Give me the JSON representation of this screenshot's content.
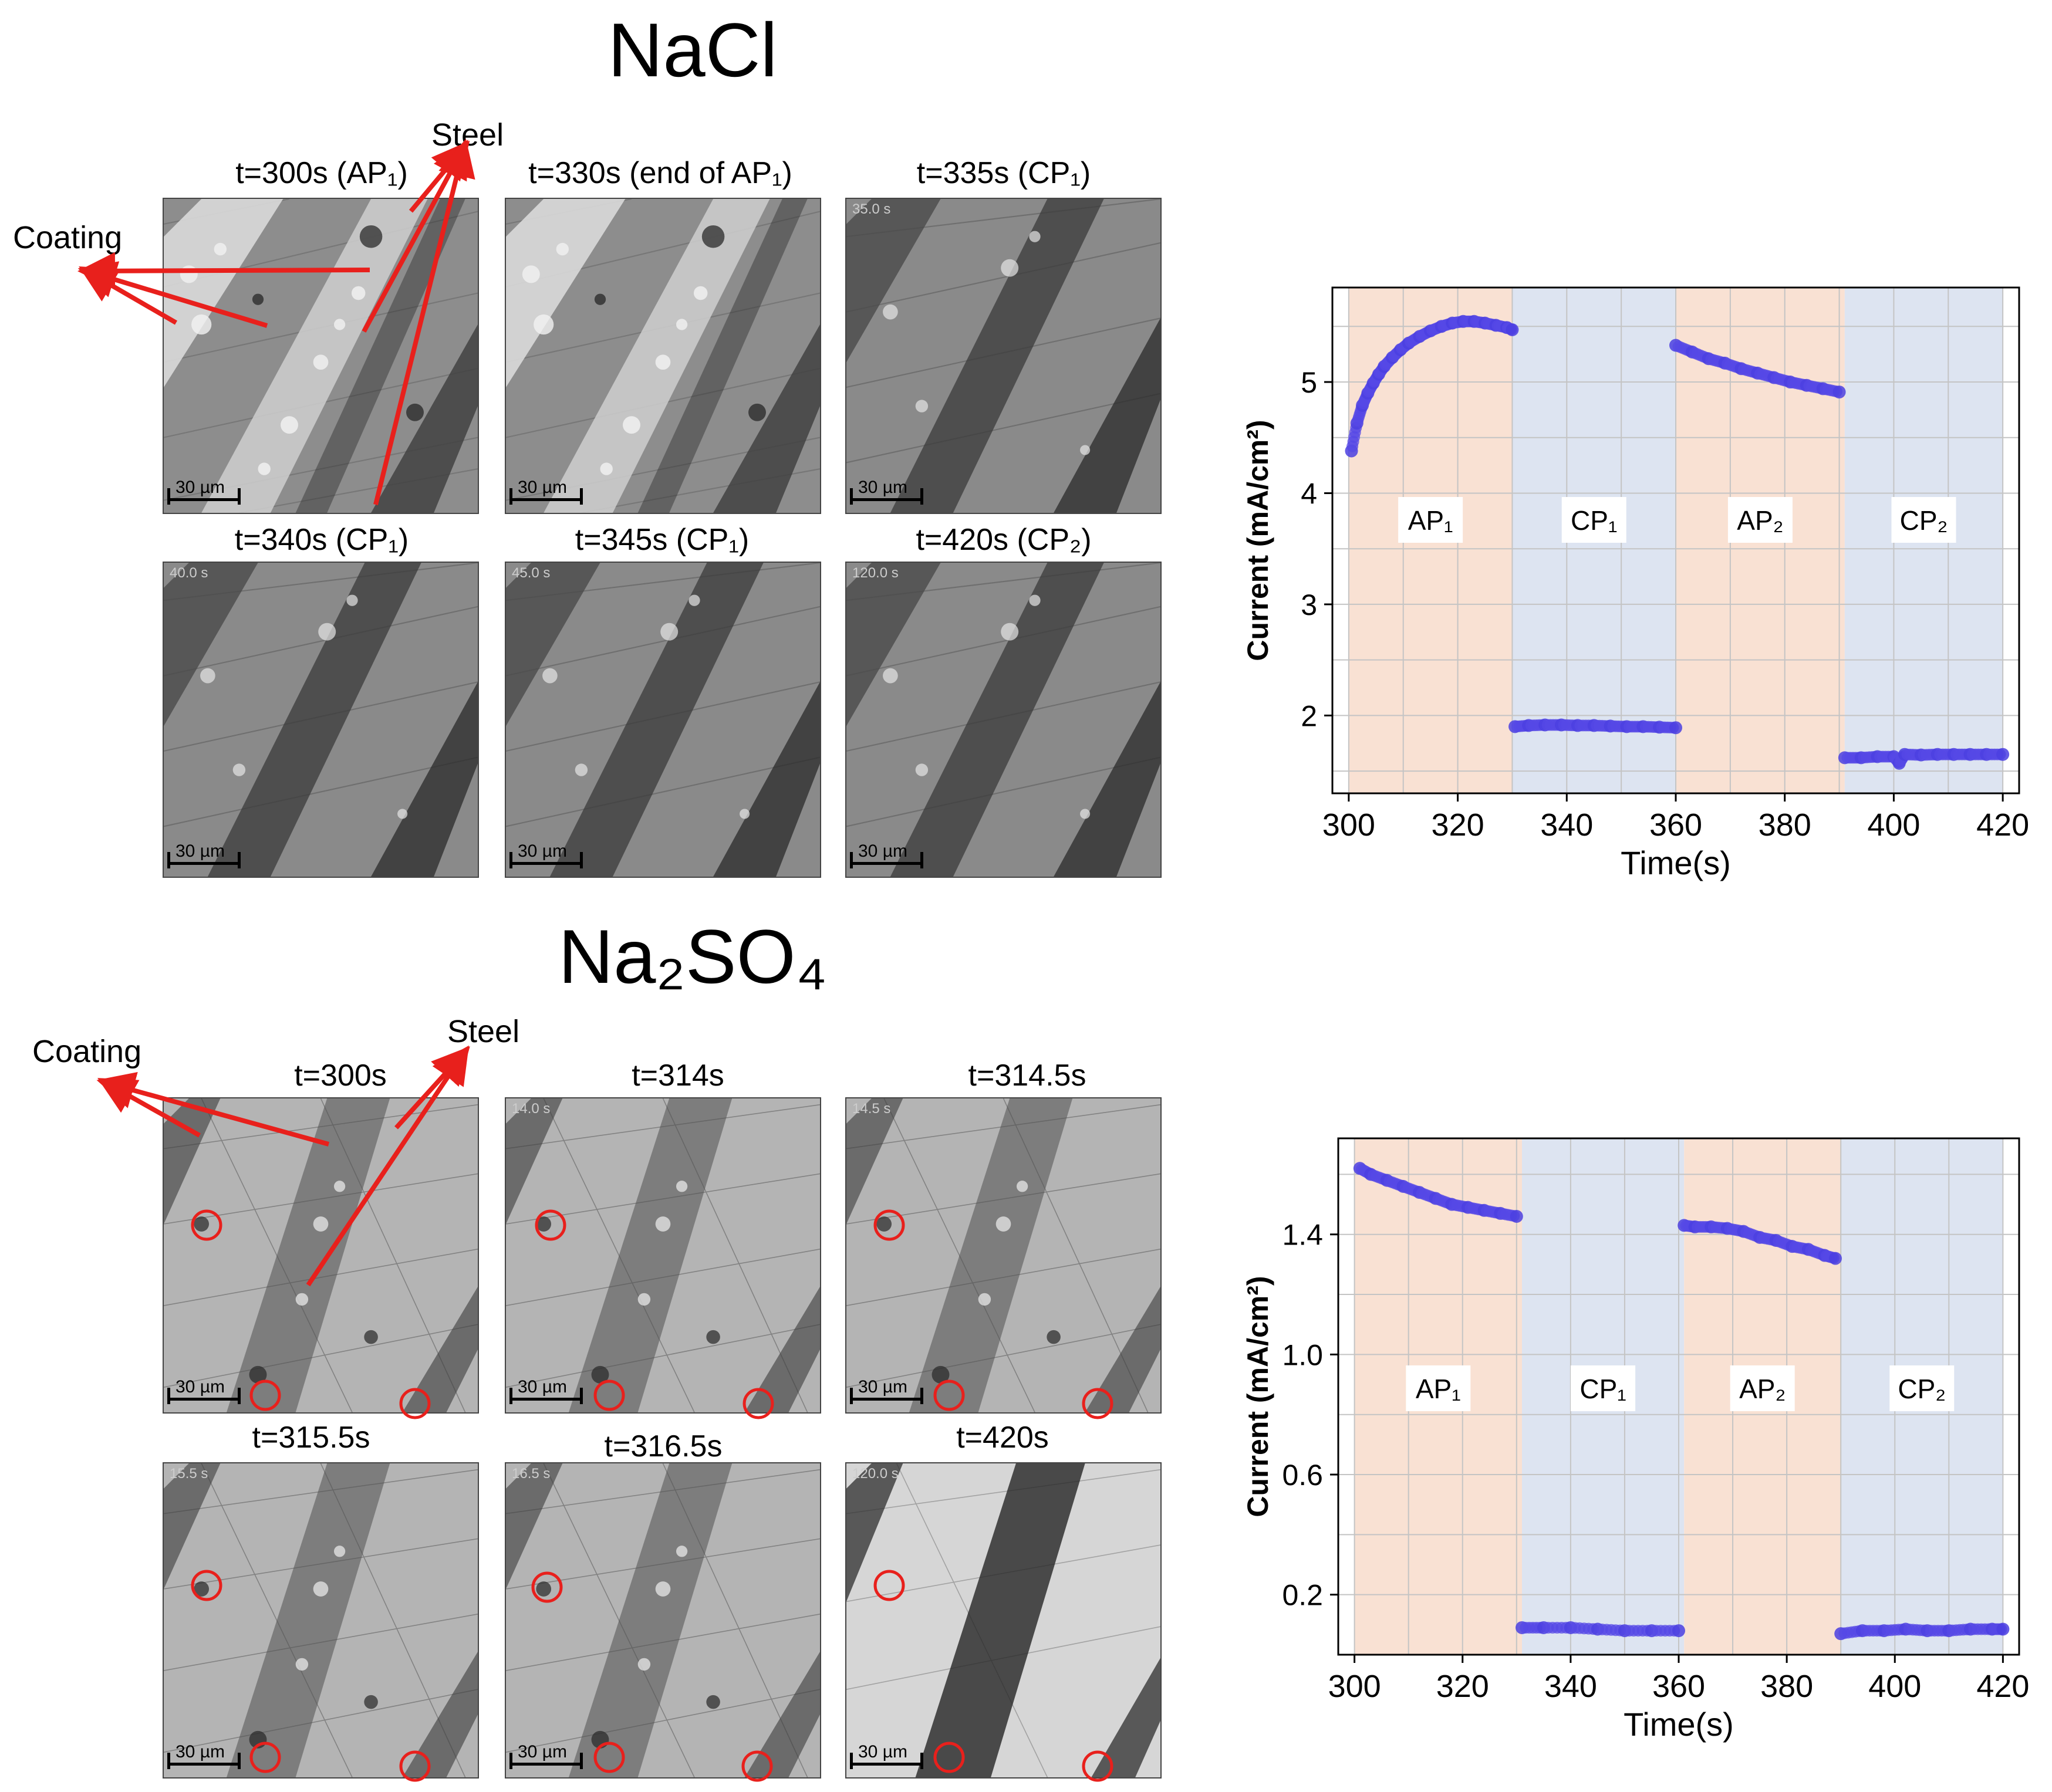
{
  "figure": {
    "top": {
      "title": "NaCl",
      "labels": {
        "coating": "Coating",
        "steel": "Steel"
      },
      "panels": [
        {
          "title": "t=300s (AP₁)",
          "scale": "30 µm",
          "stamp": ""
        },
        {
          "title": "t=330s (end of AP₁)",
          "scale": "30 µm",
          "stamp": ""
        },
        {
          "title": "t=335s (CP₁)",
          "scale": "30 µm",
          "stamp": "35.0 s"
        },
        {
          "title": "t=340s (CP₁)",
          "scale": "30 µm",
          "stamp": "40.0 s"
        },
        {
          "title": "t=345s (CP₁)",
          "scale": "30 µm",
          "stamp": "45.0 s"
        },
        {
          "title": "t=420s (CP₂)",
          "scale": "30 µm",
          "stamp": "120.0 s"
        }
      ]
    },
    "bottom": {
      "title": "Na₂SO₄",
      "labels": {
        "coating": "Coating",
        "steel": "Steel"
      },
      "panels": [
        {
          "title": "t=300s",
          "scale": "30 µm",
          "stamp": ""
        },
        {
          "title": "t=314s",
          "scale": "30 µm",
          "stamp": "14.0 s"
        },
        {
          "title": "t=314.5s",
          "scale": "30 µm",
          "stamp": "14.5 s"
        },
        {
          "title": "t=315.5s",
          "scale": "30 µm",
          "stamp": "15.5 s"
        },
        {
          "title": "t=316.5s",
          "scale": "30 µm",
          "stamp": "16.5 s"
        },
        {
          "title": "t=420s",
          "scale": "30 µm",
          "stamp": "120.0 s"
        }
      ]
    }
  },
  "chart_data": [
    {
      "type": "scatter",
      "title": "",
      "xlabel": "Time(s)",
      "ylabel": "Current (mA/cm²)",
      "xlim": [
        297,
        423
      ],
      "ylim": [
        1.3,
        5.85
      ],
      "xticks": [
        300,
        320,
        340,
        360,
        380,
        400,
        420
      ],
      "yticks": [
        2,
        3,
        4,
        5
      ],
      "regions": [
        {
          "label": "AP₁",
          "x0": 300,
          "x1": 330,
          "color": "#f9e1d3"
        },
        {
          "label": "CP₁",
          "x0": 330,
          "x1": 360,
          "color": "#dde4f1"
        },
        {
          "label": "AP₂",
          "x0": 360,
          "x1": 391,
          "color": "#f9e1d3"
        },
        {
          "label": "CP₂",
          "x0": 391,
          "x1": 420,
          "color": "#dde4f1"
        }
      ],
      "series": [
        {
          "name": "AP1",
          "x": [
            300.5,
            301.5,
            302.5,
            303.5,
            304.5,
            305.5,
            306.5,
            308,
            309.5,
            311,
            313,
            315,
            317,
            319,
            321,
            323,
            325,
            327,
            329,
            330
          ],
          "y": [
            4.38,
            4.63,
            4.79,
            4.9,
            4.99,
            5.07,
            5.14,
            5.22,
            5.29,
            5.35,
            5.41,
            5.46,
            5.5,
            5.53,
            5.545,
            5.545,
            5.53,
            5.51,
            5.49,
            5.47
          ]
        },
        {
          "name": "CP1",
          "x": [
            330.5,
            333,
            336,
            339,
            342,
            345,
            348,
            351,
            354,
            357,
            360
          ],
          "y": [
            1.9,
            1.91,
            1.915,
            1.915,
            1.91,
            1.91,
            1.905,
            1.9,
            1.9,
            1.895,
            1.89
          ]
        },
        {
          "name": "AP2",
          "x": [
            360,
            363,
            366,
            369,
            372,
            375,
            378,
            381,
            384,
            387,
            390
          ],
          "y": [
            5.33,
            5.27,
            5.21,
            5.17,
            5.12,
            5.08,
            5.04,
            5.0,
            4.97,
            4.94,
            4.91
          ]
        },
        {
          "name": "CP2",
          "x": [
            391,
            394,
            397,
            400,
            401,
            402,
            405,
            408,
            411,
            414,
            417,
            420
          ],
          "y": [
            1.62,
            1.62,
            1.63,
            1.63,
            1.57,
            1.65,
            1.645,
            1.65,
            1.65,
            1.65,
            1.65,
            1.65
          ]
        }
      ]
    },
    {
      "type": "scatter",
      "title": "",
      "xlabel": "Time(s)",
      "ylabel": "Current (mA/cm²)",
      "xlim": [
        297,
        423
      ],
      "ylim": [
        0.0,
        1.72
      ],
      "xticks": [
        300,
        320,
        340,
        360,
        380,
        400,
        420
      ],
      "yticks": [
        0.2,
        0.6,
        1.0,
        1.4
      ],
      "regions": [
        {
          "label": "AP₁",
          "x0": 300,
          "x1": 331,
          "color": "#f9e1d3"
        },
        {
          "label": "CP₁",
          "x0": 331,
          "x1": 361,
          "color": "#dde4f1"
        },
        {
          "label": "AP₂",
          "x0": 361,
          "x1": 390,
          "color": "#f9e1d3"
        },
        {
          "label": "CP₂",
          "x0": 390,
          "x1": 420,
          "color": "#dde4f1"
        }
      ],
      "series": [
        {
          "name": "AP1",
          "x": [
            301,
            303,
            306,
            309,
            312,
            315,
            318,
            321,
            324,
            327,
            330
          ],
          "y": [
            1.62,
            1.6,
            1.58,
            1.56,
            1.54,
            1.52,
            1.5,
            1.49,
            1.48,
            1.47,
            1.46
          ]
        },
        {
          "name": "CP1",
          "x": [
            331,
            335,
            340,
            345,
            350,
            355,
            360
          ],
          "y": [
            0.09,
            0.09,
            0.09,
            0.085,
            0.08,
            0.08,
            0.08
          ]
        },
        {
          "name": "AP2",
          "x": [
            361,
            363,
            366,
            369,
            372,
            375,
            378,
            381,
            384,
            387,
            389
          ],
          "y": [
            1.43,
            1.425,
            1.425,
            1.42,
            1.41,
            1.39,
            1.38,
            1.36,
            1.35,
            1.33,
            1.32
          ]
        },
        {
          "name": "CP2",
          "x": [
            390,
            394,
            398,
            402,
            406,
            410,
            414,
            418,
            420
          ],
          "y": [
            0.07,
            0.08,
            0.08,
            0.085,
            0.08,
            0.08,
            0.085,
            0.085,
            0.085
          ]
        }
      ]
    }
  ]
}
